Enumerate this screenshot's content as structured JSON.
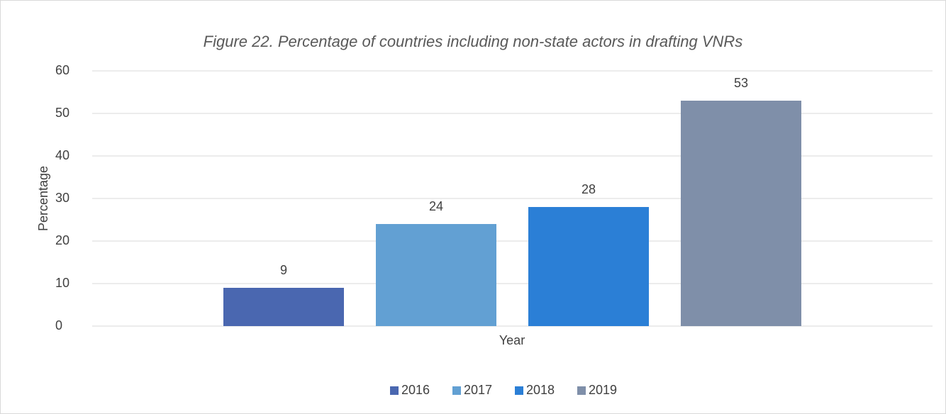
{
  "chart_data": {
    "type": "bar",
    "title": "Figure 22. Percentage of countries including non-state actors in drafting VNRs",
    "x_label": "Year",
    "y_label": "Percentage",
    "categories": [
      null
    ],
    "series": [
      {
        "name": "2016",
        "color": "#4a67b0",
        "values": [
          9
        ]
      },
      {
        "name": "2017",
        "color": "#62a0d3",
        "values": [
          24
        ]
      },
      {
        "name": "2018",
        "color": "#2b7fd6",
        "values": [
          28
        ]
      },
      {
        "name": "2019",
        "color": "#7f8fa9",
        "values": [
          53
        ]
      }
    ],
    "ylim": [
      0,
      60
    ],
    "yticks": [
      0,
      10,
      20,
      30,
      40,
      50,
      60
    ],
    "grid": true,
    "legend": "bottom"
  }
}
